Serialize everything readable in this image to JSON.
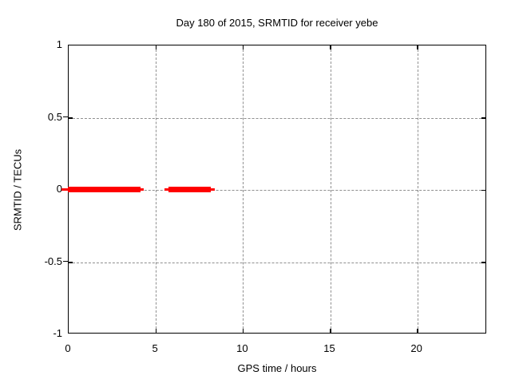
{
  "title": "Day 180 of 2015, SRMTID for receiver yebe",
  "axes": {
    "xlabel": "GPS time / hours",
    "ylabel": "SRMTID / TECUs"
  },
  "colors": {
    "series": "#ff0000",
    "grid": "#8f8f8f",
    "border": "#000000",
    "text": "#000000",
    "background": "#ffffff"
  },
  "chart_data": {
    "type": "line",
    "title": "Day 180 of 2015, SRMTID for receiver yebe",
    "xlabel": "GPS time / hours",
    "ylabel": "SRMTID / TECUs",
    "xlim": [
      0,
      24
    ],
    "ylim": [
      -1,
      1
    ],
    "xticks": [
      0,
      5,
      10,
      15,
      20
    ],
    "yticks": [
      1,
      0.5,
      0,
      -0.5,
      -1
    ],
    "grid": true,
    "legend": false,
    "series": [
      {
        "name": "SRMTID",
        "color": "#ff0000",
        "description": "Thick red line at SRMTID = 0 TECUs over two time intervals",
        "segments": [
          {
            "x_start": 0.0,
            "x_end": 4.2,
            "y": 0.0
          },
          {
            "x_start": 5.8,
            "x_end": 8.2,
            "y": 0.0
          }
        ]
      }
    ],
    "render_marks": [
      {
        "x1": -0.37,
        "x2": 0.0,
        "y": 0,
        "weight": "thin"
      },
      {
        "x1": 0.0,
        "x2": 4.18,
        "y": 0,
        "weight": "thick"
      },
      {
        "x1": 4.18,
        "x2": 4.35,
        "y": 0,
        "weight": "thin"
      },
      {
        "x1": 5.54,
        "x2": 5.78,
        "y": 0,
        "weight": "thin"
      },
      {
        "x1": 5.78,
        "x2": 8.2,
        "y": 0,
        "weight": "thick"
      },
      {
        "x1": 8.2,
        "x2": 8.41,
        "y": 0,
        "weight": "thin"
      }
    ]
  }
}
